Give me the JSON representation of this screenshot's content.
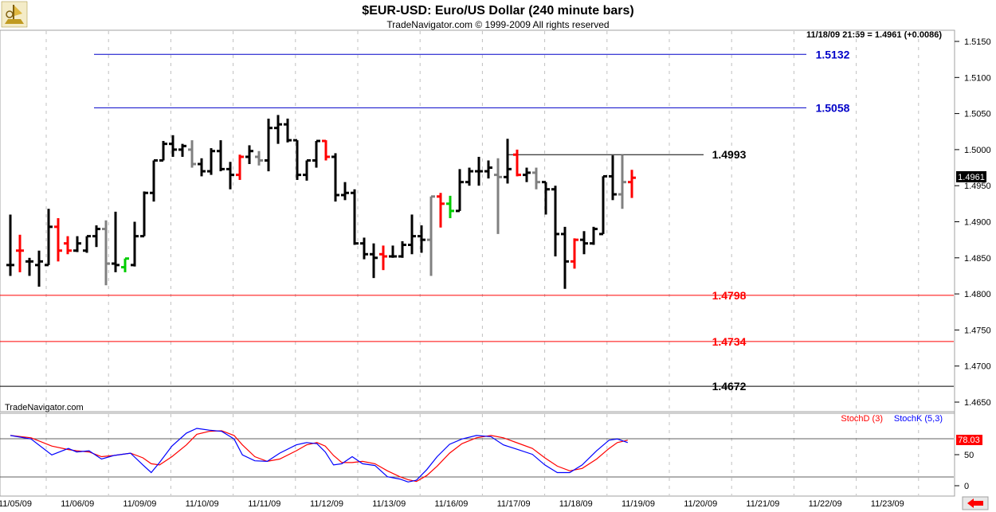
{
  "title": "$EUR-USD:  Euro/US Dollar  (240 minute bars)",
  "copyright": "TradeNavigator.com © 1999-2009 All rights reserved",
  "last_info": "11/18/09 21:59 = 1.4961 (+0.0086)",
  "last_price_label": "1.4961",
  "watermark": "TradeNavigator.com",
  "stoch_value_label": "78.03",
  "legend": {
    "stochd": "StochD (3)",
    "stochk": "StochK (5,3)"
  },
  "colors": {
    "up": "#000000",
    "gray": "#808080",
    "red": "#ff0000",
    "green": "#00cc00",
    "blue_level": "#0000c8",
    "red_level": "#ff0000",
    "black_level": "#000000",
    "stochk": "#0000ff",
    "stochd": "#ff0000"
  },
  "icons": {
    "logo": "ship-wheel-logo-icon",
    "arrow": "left-arrow-icon"
  },
  "chart_data": {
    "type": "ohlc",
    "price_axis": {
      "ticks": [
        "1.5150",
        "1.5100",
        "1.5050",
        "1.5000",
        "1.4950",
        "1.4900",
        "1.4850",
        "1.4800",
        "1.4750",
        "1.4700",
        "1.4650"
      ],
      "range": [
        1.464,
        1.5165
      ]
    },
    "date_labels": [
      "11/05/09",
      "11/06/09",
      "11/09/09",
      "11/10/09",
      "11/11/09",
      "11/12/09",
      "11/13/09",
      "11/16/09",
      "11/17/09",
      "11/18/09",
      "11/19/09",
      "11/20/09",
      "11/21/09",
      "11/22/09",
      "11/23/09"
    ],
    "levels": [
      {
        "value": 1.5132,
        "label": "1.5132",
        "color": "blue"
      },
      {
        "value": 1.5058,
        "label": "1.5058",
        "color": "blue"
      },
      {
        "value": 1.4993,
        "label": "1.4993",
        "color": "black"
      },
      {
        "value": 1.4798,
        "label": "1.4798",
        "color": "red"
      },
      {
        "value": 1.4734,
        "label": "1.4734",
        "color": "red"
      },
      {
        "value": 1.4672,
        "label": "1.4672",
        "color": "black"
      }
    ],
    "bars": [
      {
        "x": 0,
        "o": 1.484,
        "h": 1.491,
        "l": 1.4825,
        "c": 1.484,
        "col": "up"
      },
      {
        "x": 1,
        "o": 1.486,
        "h": 1.4882,
        "l": 1.483,
        "c": 1.486,
        "col": "red"
      },
      {
        "x": 2,
        "o": 1.4845,
        "h": 1.485,
        "l": 1.4825,
        "c": 1.4845,
        "col": "up"
      },
      {
        "x": 3,
        "o": 1.484,
        "h": 1.486,
        "l": 1.481,
        "c": 1.4845,
        "col": "up"
      },
      {
        "x": 4,
        "o": 1.484,
        "h": 1.4918,
        "l": 1.484,
        "c": 1.4893,
        "col": "up"
      },
      {
        "x": 5,
        "o": 1.4893,
        "h": 1.4905,
        "l": 1.4845,
        "c": 1.486,
        "col": "red"
      },
      {
        "x": 6,
        "o": 1.487,
        "h": 1.488,
        "l": 1.4855,
        "c": 1.486,
        "col": "red"
      },
      {
        "x": 7,
        "o": 1.486,
        "h": 1.488,
        "l": 1.4858,
        "c": 1.487,
        "col": "up"
      },
      {
        "x": 8,
        "o": 1.486,
        "h": 1.488,
        "l": 1.4857,
        "c": 1.488,
        "col": "up"
      },
      {
        "x": 9,
        "o": 1.488,
        "h": 1.4895,
        "l": 1.4865,
        "c": 1.489,
        "col": "up"
      },
      {
        "x": 10,
        "o": 1.489,
        "h": 1.4902,
        "l": 1.4812,
        "c": 1.4842,
        "col": "gray"
      },
      {
        "x": 11,
        "o": 1.4842,
        "h": 1.4914,
        "l": 1.483,
        "c": 1.484,
        "col": "up"
      },
      {
        "x": 12,
        "o": 1.4837,
        "h": 1.4849,
        "l": 1.483,
        "c": 1.4849,
        "col": "green"
      },
      {
        "x": 13,
        "o": 1.484,
        "h": 1.49,
        "l": 1.4838,
        "c": 1.488,
        "col": "up"
      },
      {
        "x": 14,
        "o": 1.488,
        "h": 1.4942,
        "l": 1.488,
        "c": 1.494,
        "col": "up"
      },
      {
        "x": 15,
        "o": 1.494,
        "h": 1.4985,
        "l": 1.4928,
        "c": 1.4985,
        "col": "up"
      },
      {
        "x": 16,
        "o": 1.4985,
        "h": 1.5012,
        "l": 1.4985,
        "c": 1.5008,
        "col": "up"
      },
      {
        "x": 17,
        "o": 1.5008,
        "h": 1.502,
        "l": 1.499,
        "c": 1.5,
        "col": "up"
      },
      {
        "x": 18,
        "o": 1.5,
        "h": 1.5008,
        "l": 1.499,
        "c": 1.5005,
        "col": "up"
      },
      {
        "x": 19,
        "o": 1.5,
        "h": 1.5013,
        "l": 1.4975,
        "c": 1.498,
        "col": "gray"
      },
      {
        "x": 20,
        "o": 1.498,
        "h": 1.4988,
        "l": 1.4963,
        "c": 1.497,
        "col": "up"
      },
      {
        "x": 21,
        "o": 1.497,
        "h": 1.5002,
        "l": 1.4965,
        "c": 1.4998,
        "col": "up"
      },
      {
        "x": 22,
        "o": 1.4998,
        "h": 1.5013,
        "l": 1.497,
        "c": 1.4973,
        "col": "up"
      },
      {
        "x": 23,
        "o": 1.4973,
        "h": 1.4983,
        "l": 1.4945,
        "c": 1.4965,
        "col": "up"
      },
      {
        "x": 24,
        "o": 1.4965,
        "h": 1.4993,
        "l": 1.4958,
        "c": 1.499,
        "col": "red"
      },
      {
        "x": 25,
        "o": 1.499,
        "h": 1.5006,
        "l": 1.498,
        "c": 1.4998,
        "col": "up"
      },
      {
        "x": 26,
        "o": 1.499,
        "h": 1.4998,
        "l": 1.4978,
        "c": 1.4985,
        "col": "gray"
      },
      {
        "x": 27,
        "o": 1.4985,
        "h": 1.5043,
        "l": 1.497,
        "c": 1.503,
        "col": "up"
      },
      {
        "x": 28,
        "o": 1.503,
        "h": 1.5048,
        "l": 1.5008,
        "c": 1.5035,
        "col": "up"
      },
      {
        "x": 29,
        "o": 1.5035,
        "h": 1.5043,
        "l": 1.501,
        "c": 1.5013,
        "col": "up"
      },
      {
        "x": 30,
        "o": 1.5013,
        "h": 1.5013,
        "l": 1.4958,
        "c": 1.4965,
        "col": "up"
      },
      {
        "x": 31,
        "o": 1.4965,
        "h": 1.4985,
        "l": 1.4957,
        "c": 1.4985,
        "col": "up"
      },
      {
        "x": 32,
        "o": 1.4985,
        "h": 1.5012,
        "l": 1.4975,
        "c": 1.5012,
        "col": "up"
      },
      {
        "x": 33,
        "o": 1.5012,
        "h": 1.5013,
        "l": 1.4985,
        "c": 1.499,
        "col": "red"
      },
      {
        "x": 34,
        "o": 1.499,
        "h": 1.4995,
        "l": 1.4928,
        "c": 1.4937,
        "col": "up"
      },
      {
        "x": 35,
        "o": 1.4937,
        "h": 1.4955,
        "l": 1.493,
        "c": 1.494,
        "col": "up"
      },
      {
        "x": 36,
        "o": 1.494,
        "h": 1.4945,
        "l": 1.4868,
        "c": 1.487,
        "col": "up"
      },
      {
        "x": 37,
        "o": 1.487,
        "h": 1.4878,
        "l": 1.4848,
        "c": 1.4855,
        "col": "up"
      },
      {
        "x": 38,
        "o": 1.4855,
        "h": 1.487,
        "l": 1.4822,
        "c": 1.485,
        "col": "up"
      },
      {
        "x": 39,
        "o": 1.4855,
        "h": 1.4867,
        "l": 1.4833,
        "c": 1.4852,
        "col": "red"
      },
      {
        "x": 40,
        "o": 1.4852,
        "h": 1.4867,
        "l": 1.485,
        "c": 1.4852,
        "col": "up"
      },
      {
        "x": 41,
        "o": 1.4852,
        "h": 1.4873,
        "l": 1.485,
        "c": 1.4868,
        "col": "up"
      },
      {
        "x": 42,
        "o": 1.4868,
        "h": 1.491,
        "l": 1.4855,
        "c": 1.488,
        "col": "up"
      },
      {
        "x": 43,
        "o": 1.488,
        "h": 1.4895,
        "l": 1.4857,
        "c": 1.4875,
        "col": "up"
      },
      {
        "x": 44,
        "o": 1.4875,
        "h": 1.4935,
        "l": 1.4825,
        "c": 1.4935,
        "col": "gray"
      },
      {
        "x": 45,
        "o": 1.4935,
        "h": 1.494,
        "l": 1.4892,
        "c": 1.4925,
        "col": "red"
      },
      {
        "x": 46,
        "o": 1.4925,
        "h": 1.4936,
        "l": 1.4905,
        "c": 1.4915,
        "col": "green"
      },
      {
        "x": 47,
        "o": 1.4915,
        "h": 1.4973,
        "l": 1.4915,
        "c": 1.4955,
        "col": "up"
      },
      {
        "x": 48,
        "o": 1.4955,
        "h": 1.4975,
        "l": 1.495,
        "c": 1.497,
        "col": "up"
      },
      {
        "x": 49,
        "o": 1.497,
        "h": 1.499,
        "l": 1.495,
        "c": 1.497,
        "col": "up"
      },
      {
        "x": 50,
        "o": 1.497,
        "h": 1.4985,
        "l": 1.496,
        "c": 1.4975,
        "col": "up"
      },
      {
        "x": 51,
        "o": 1.4965,
        "h": 1.4988,
        "l": 1.4883,
        "c": 1.4962,
        "col": "gray"
      },
      {
        "x": 52,
        "o": 1.4962,
        "h": 1.5015,
        "l": 1.4953,
        "c": 1.4973,
        "col": "up"
      },
      {
        "x": 53,
        "o": 1.4993,
        "h": 1.5,
        "l": 1.4963,
        "c": 1.4965,
        "col": "red"
      },
      {
        "x": 54,
        "o": 1.4965,
        "h": 1.4975,
        "l": 1.4955,
        "c": 1.4968,
        "col": "up"
      },
      {
        "x": 55,
        "o": 1.4968,
        "h": 1.4975,
        "l": 1.4945,
        "c": 1.4955,
        "col": "gray"
      },
      {
        "x": 56,
        "o": 1.4955,
        "h": 1.4955,
        "l": 1.491,
        "c": 1.4945,
        "col": "up"
      },
      {
        "x": 57,
        "o": 1.4945,
        "h": 1.495,
        "l": 1.4852,
        "c": 1.4883,
        "col": "up"
      },
      {
        "x": 58,
        "o": 1.4883,
        "h": 1.4893,
        "l": 1.4807,
        "c": 1.4845,
        "col": "up"
      },
      {
        "x": 59,
        "o": 1.4845,
        "h": 1.4877,
        "l": 1.4835,
        "c": 1.4875,
        "col": "red"
      },
      {
        "x": 60,
        "o": 1.4875,
        "h": 1.4887,
        "l": 1.4855,
        "c": 1.487,
        "col": "up"
      },
      {
        "x": 61,
        "o": 1.487,
        "h": 1.4893,
        "l": 1.4868,
        "c": 1.489,
        "col": "up"
      },
      {
        "x": 62,
        "o": 1.4883,
        "h": 1.4963,
        "l": 1.4883,
        "c": 1.4963,
        "col": "up"
      },
      {
        "x": 63,
        "o": 1.4963,
        "h": 1.4992,
        "l": 1.493,
        "c": 1.4938,
        "col": "up"
      },
      {
        "x": 64,
        "o": 1.4938,
        "h": 1.4993,
        "l": 1.4918,
        "c": 1.4955,
        "col": "gray"
      },
      {
        "x": 65,
        "o": 1.4955,
        "h": 1.4972,
        "l": 1.4933,
        "c": 1.4961,
        "col": "red"
      }
    ],
    "stochastic": {
      "stochk_points": [
        [
          0,
          88
        ],
        [
          10,
          82
        ],
        [
          20,
          55
        ],
        [
          28,
          66
        ],
        [
          32,
          60
        ],
        [
          38,
          62
        ],
        [
          44,
          48
        ],
        [
          50,
          54
        ],
        [
          58,
          58
        ],
        [
          64,
          38
        ],
        [
          68,
          25
        ],
        [
          72,
          42
        ],
        [
          78,
          70
        ],
        [
          85,
          92
        ],
        [
          90,
          100
        ],
        [
          96,
          97
        ],
        [
          102,
          95
        ],
        [
          108,
          82
        ],
        [
          112,
          55
        ],
        [
          118,
          45
        ],
        [
          124,
          44
        ],
        [
          130,
          58
        ],
        [
          138,
          72
        ],
        [
          143,
          76
        ],
        [
          148,
          74
        ],
        [
          152,
          60
        ],
        [
          156,
          38
        ],
        [
          160,
          40
        ],
        [
          165,
          52
        ],
        [
          170,
          40
        ],
        [
          176,
          37
        ],
        [
          182,
          18
        ],
        [
          188,
          14
        ],
        [
          192,
          9
        ],
        [
          196,
          12
        ],
        [
          201,
          30
        ],
        [
          206,
          52
        ],
        [
          212,
          73
        ],
        [
          218,
          82
        ],
        [
          225,
          88
        ],
        [
          232,
          86
        ],
        [
          238,
          72
        ],
        [
          245,
          64
        ],
        [
          252,
          56
        ],
        [
          258,
          38
        ],
        [
          264,
          25
        ],
        [
          270,
          25
        ],
        [
          276,
          38
        ],
        [
          283,
          62
        ],
        [
          289,
          80
        ],
        [
          293,
          82
        ],
        [
          298,
          76
        ]
      ],
      "stochd_points": [
        [
          0,
          88
        ],
        [
          10,
          84
        ],
        [
          20,
          70
        ],
        [
          28,
          64
        ],
        [
          32,
          62
        ],
        [
          38,
          60
        ],
        [
          44,
          52
        ],
        [
          50,
          54
        ],
        [
          58,
          58
        ],
        [
          64,
          50
        ],
        [
          68,
          40
        ],
        [
          72,
          38
        ],
        [
          78,
          52
        ],
        [
          85,
          72
        ],
        [
          90,
          90
        ],
        [
          96,
          95
        ],
        [
          102,
          96
        ],
        [
          108,
          88
        ],
        [
          112,
          72
        ],
        [
          118,
          52
        ],
        [
          124,
          44
        ],
        [
          130,
          48
        ],
        [
          138,
          62
        ],
        [
          143,
          72
        ],
        [
          148,
          76
        ],
        [
          152,
          70
        ],
        [
          156,
          54
        ],
        [
          160,
          42
        ],
        [
          165,
          42
        ],
        [
          170,
          44
        ],
        [
          176,
          40
        ],
        [
          182,
          28
        ],
        [
          188,
          18
        ],
        [
          192,
          13
        ],
        [
          196,
          10
        ],
        [
          201,
          20
        ],
        [
          206,
          36
        ],
        [
          212,
          58
        ],
        [
          218,
          74
        ],
        [
          225,
          84
        ],
        [
          232,
          88
        ],
        [
          238,
          84
        ],
        [
          245,
          75
        ],
        [
          252,
          66
        ],
        [
          258,
          50
        ],
        [
          264,
          36
        ],
        [
          270,
          28
        ],
        [
          276,
          32
        ],
        [
          283,
          48
        ],
        [
          289,
          66
        ],
        [
          293,
          76
        ],
        [
          298,
          80
        ]
      ],
      "ticks": [
        "50",
        "0"
      ],
      "current": 78.03
    }
  }
}
